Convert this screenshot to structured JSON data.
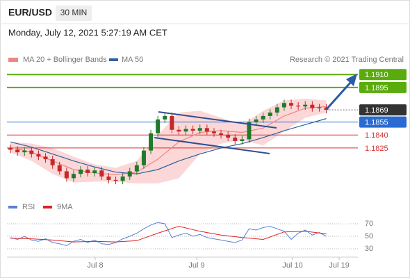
{
  "chart_data": [
    {
      "type": "candlestick",
      "title": "EUR/USD",
      "timeframe": "30 MIN",
      "subtitle": "Monday, July 12, 2021 5:27:19 AM CET",
      "source": "Research © 2021 Trading Central",
      "xlim": [
        -0.5,
        49.5
      ],
      "ylim": [
        1.1763,
        1.1919
      ],
      "up_color": "#1f7a2a",
      "down_color": "#c62828",
      "x": [
        0,
        1,
        2,
        3,
        4,
        5,
        6,
        7,
        8,
        9,
        10,
        11,
        12,
        13,
        14,
        15,
        16,
        17,
        18,
        19,
        20,
        21,
        22,
        23,
        24,
        25,
        26,
        27,
        28,
        29,
        30,
        31,
        32,
        33,
        34,
        35,
        36,
        37,
        38,
        39,
        40,
        41,
        42,
        43,
        44,
        45
      ],
      "open": [
        1.1825,
        1.1823,
        1.182,
        1.1822,
        1.1818,
        1.1815,
        1.1812,
        1.1805,
        1.1798,
        1.179,
        1.1795,
        1.18,
        1.1796,
        1.1799,
        1.1792,
        1.1788,
        1.1787,
        1.1792,
        1.1798,
        1.1805,
        1.1822,
        1.1842,
        1.1858,
        1.1862,
        1.1846,
        1.1844,
        1.1847,
        1.1845,
        1.1848,
        1.1844,
        1.1842,
        1.184,
        1.1837,
        1.1833,
        1.1835,
        1.1855,
        1.1858,
        1.1862,
        1.1866,
        1.1872,
        1.1877,
        1.1874,
        1.1873,
        1.1875,
        1.1871,
        1.1872
      ],
      "high": [
        1.1829,
        1.1827,
        1.1826,
        1.1826,
        1.1822,
        1.1819,
        1.1816,
        1.1809,
        1.1802,
        1.1799,
        1.1804,
        1.1804,
        1.1803,
        1.1803,
        1.1796,
        1.1792,
        1.1796,
        1.1802,
        1.1809,
        1.1826,
        1.1846,
        1.1862,
        1.1866,
        1.1866,
        1.185,
        1.1851,
        1.1851,
        1.1852,
        1.1852,
        1.1848,
        1.1846,
        1.1844,
        1.1841,
        1.1839,
        1.1859,
        1.1862,
        1.1866,
        1.187,
        1.1876,
        1.1881,
        1.1881,
        1.1878,
        1.1879,
        1.1879,
        1.1876,
        1.1876
      ],
      "low": [
        1.1819,
        1.1816,
        1.1816,
        1.1814,
        1.1811,
        1.1808,
        1.1801,
        1.1794,
        1.1786,
        1.1786,
        1.1791,
        1.1792,
        1.1792,
        1.1788,
        1.1784,
        1.1783,
        1.1783,
        1.1788,
        1.1794,
        1.1801,
        1.1818,
        1.1838,
        1.1854,
        1.1842,
        1.184,
        1.184,
        1.1841,
        1.1841,
        1.184,
        1.1838,
        1.1836,
        1.1833,
        1.1829,
        1.1829,
        1.1831,
        1.1851,
        1.1854,
        1.1858,
        1.1862,
        1.1868,
        1.187,
        1.1869,
        1.1869,
        1.1867,
        1.1867,
        1.1865
      ],
      "close": [
        1.1823,
        1.182,
        1.1822,
        1.1818,
        1.1815,
        1.1812,
        1.1805,
        1.1798,
        1.179,
        1.1795,
        1.18,
        1.1796,
        1.1799,
        1.1792,
        1.1788,
        1.1787,
        1.1792,
        1.1798,
        1.1805,
        1.1822,
        1.1842,
        1.1858,
        1.1862,
        1.1846,
        1.1844,
        1.1847,
        1.1845,
        1.1848,
        1.1844,
        1.1842,
        1.184,
        1.1837,
        1.1833,
        1.1835,
        1.1855,
        1.1858,
        1.1862,
        1.1866,
        1.1872,
        1.1877,
        1.1874,
        1.1873,
        1.1875,
        1.1871,
        1.1872,
        1.1869
      ],
      "series": [
        {
          "name": "MA 20 + Bollinger Bands",
          "color": "#f08585",
          "band_color": "#f9c9c9",
          "x": [
            0,
            3,
            6,
            9,
            12,
            15,
            18,
            21,
            24,
            27,
            30,
            33,
            36,
            39,
            42,
            45
          ],
          "values": [
            1.1826,
            1.182,
            1.181,
            1.18,
            1.1796,
            1.1794,
            1.1797,
            1.1812,
            1.1832,
            1.1843,
            1.1845,
            1.1843,
            1.1848,
            1.1862,
            1.1871,
            1.1873
          ],
          "upper": [
            1.1832,
            1.183,
            1.1825,
            1.1815,
            1.1806,
            1.1802,
            1.181,
            1.184,
            1.1866,
            1.1868,
            1.186,
            1.1852,
            1.1868,
            1.188,
            1.1882,
            1.188
          ],
          "lower": [
            1.182,
            1.181,
            1.1795,
            1.1785,
            1.1786,
            1.1786,
            1.1784,
            1.1784,
            1.179,
            1.1818,
            1.183,
            1.1834,
            1.1828,
            1.1844,
            1.186,
            1.1866
          ]
        },
        {
          "name": "MA 50",
          "color": "#2f5f9e",
          "x": [
            0,
            3,
            6,
            9,
            12,
            15,
            18,
            21,
            24,
            27,
            30,
            33,
            36,
            39,
            42,
            45
          ],
          "values": [
            1.1832,
            1.1826,
            1.1818,
            1.181,
            1.1803,
            1.1797,
            1.1795,
            1.18,
            1.181,
            1.1818,
            1.1825,
            1.183,
            1.1837,
            1.1845,
            1.1852,
            1.1859
          ]
        }
      ],
      "levels": [
        {
          "value": 1.191,
          "label": "1.1910",
          "color": "#5aab0c",
          "boxed": true
        },
        {
          "value": 1.1895,
          "label": "1.1895",
          "color": "#5aab0c",
          "boxed": true
        },
        {
          "value": 1.1855,
          "label": "1.1855",
          "color": "#2a6bd1",
          "boxed": true
        },
        {
          "value": 1.184,
          "label": "1.1840",
          "color": "#d93030",
          "boxed": false
        },
        {
          "value": 1.1825,
          "label": "1.1825",
          "color": "#d93030",
          "boxed": false
        }
      ],
      "last_price": 1.1869,
      "last_color": "#333333"
    },
    {
      "type": "line",
      "xlim": [
        -0.5,
        49.5
      ],
      "ylim": [
        20,
        80
      ],
      "yticks": [
        70,
        50,
        30
      ],
      "xticks": [
        {
          "value": 12.07,
          "label": "Jul 8"
        },
        {
          "value": 26.53,
          "label": "Jul 9"
        },
        {
          "value": 40.2,
          "label": "Jul 10"
        },
        {
          "value": 46.83,
          "label": "Jul 19"
        }
      ],
      "series": [
        {
          "name": "RSI",
          "color": "#5b7fd6",
          "x": [
            0,
            1,
            2,
            3,
            4,
            5,
            6,
            7,
            8,
            9,
            10,
            11,
            12,
            13,
            14,
            15,
            16,
            17,
            18,
            19,
            20,
            21,
            22,
            23,
            24,
            25,
            26,
            27,
            28,
            29,
            30,
            31,
            32,
            33,
            34,
            35,
            36,
            37,
            38,
            39,
            40,
            41,
            42,
            43,
            44,
            45
          ],
          "values": [
            48,
            45,
            50,
            44,
            42,
            46,
            40,
            38,
            35,
            42,
            45,
            40,
            44,
            38,
            37,
            40,
            46,
            50,
            55,
            62,
            68,
            72,
            70,
            48,
            52,
            55,
            50,
            53,
            48,
            46,
            44,
            42,
            40,
            44,
            62,
            60,
            64,
            66,
            62,
            58,
            45,
            55,
            60,
            52,
            56,
            50
          ]
        },
        {
          "name": "9MA",
          "color": "#e02020",
          "x": [
            0,
            3,
            6,
            9,
            12,
            15,
            18,
            21,
            24,
            27,
            30,
            33,
            36,
            39,
            42,
            45
          ],
          "values": [
            47,
            46,
            44,
            41,
            42,
            41,
            43,
            55,
            66,
            58,
            52,
            48,
            45,
            57,
            58,
            54
          ]
        }
      ]
    }
  ]
}
